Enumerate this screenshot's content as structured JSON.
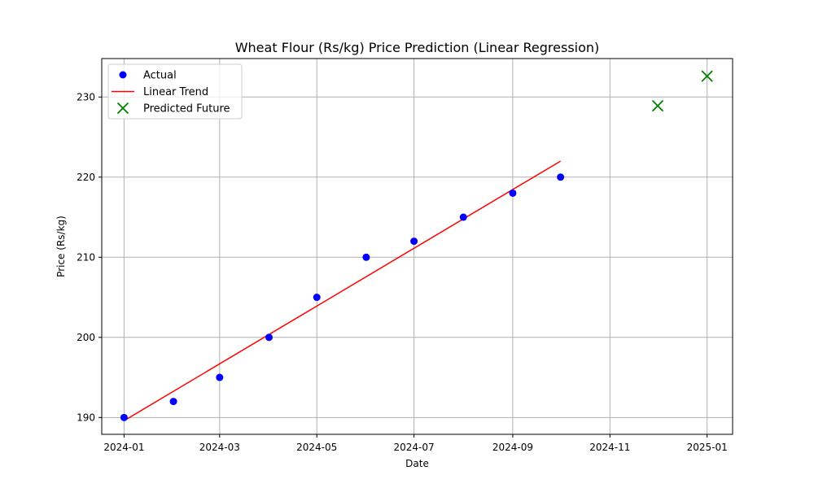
{
  "chart_data": {
    "type": "scatter",
    "title": "Wheat Flour (Rs/kg) Price Prediction (Linear Regression)",
    "xlabel": "Date",
    "ylabel": "Price (Rs/kg)",
    "x_ticks": [
      "2024-01",
      "2024-03",
      "2024-05",
      "2024-07",
      "2024-09",
      "2024-11",
      "2025-01"
    ],
    "y_ticks": [
      190,
      200,
      210,
      220,
      230
    ],
    "ylim": [
      187.9,
      234.8
    ],
    "xlim": [
      "2023-12-18",
      "2025-01-17"
    ],
    "grid": true,
    "legend_position": "upper-left",
    "series": [
      {
        "name": "Actual",
        "kind": "scatter",
        "marker": "circle",
        "color": "#0000ff",
        "points": [
          {
            "x": "2024-01-01",
            "y": 190
          },
          {
            "x": "2024-02-01",
            "y": 192
          },
          {
            "x": "2024-03-01",
            "y": 195
          },
          {
            "x": "2024-04-01",
            "y": 200
          },
          {
            "x": "2024-05-01",
            "y": 205
          },
          {
            "x": "2024-06-01",
            "y": 210
          },
          {
            "x": "2024-07-01",
            "y": 212
          },
          {
            "x": "2024-08-01",
            "y": 215
          },
          {
            "x": "2024-09-01",
            "y": 218
          },
          {
            "x": "2024-10-01",
            "y": 220
          }
        ]
      },
      {
        "name": "Linear Trend",
        "kind": "line",
        "color": "#ff0000",
        "points": [
          {
            "x": "2024-01-01",
            "y": 189.6
          },
          {
            "x": "2024-10-01",
            "y": 222.0
          }
        ]
      },
      {
        "name": "Predicted Future",
        "kind": "scatter",
        "marker": "x",
        "color": "#008000",
        "points": [
          {
            "x": "2024-12-01",
            "y": 228.9
          },
          {
            "x": "2025-01-01",
            "y": 232.6
          }
        ]
      }
    ]
  }
}
